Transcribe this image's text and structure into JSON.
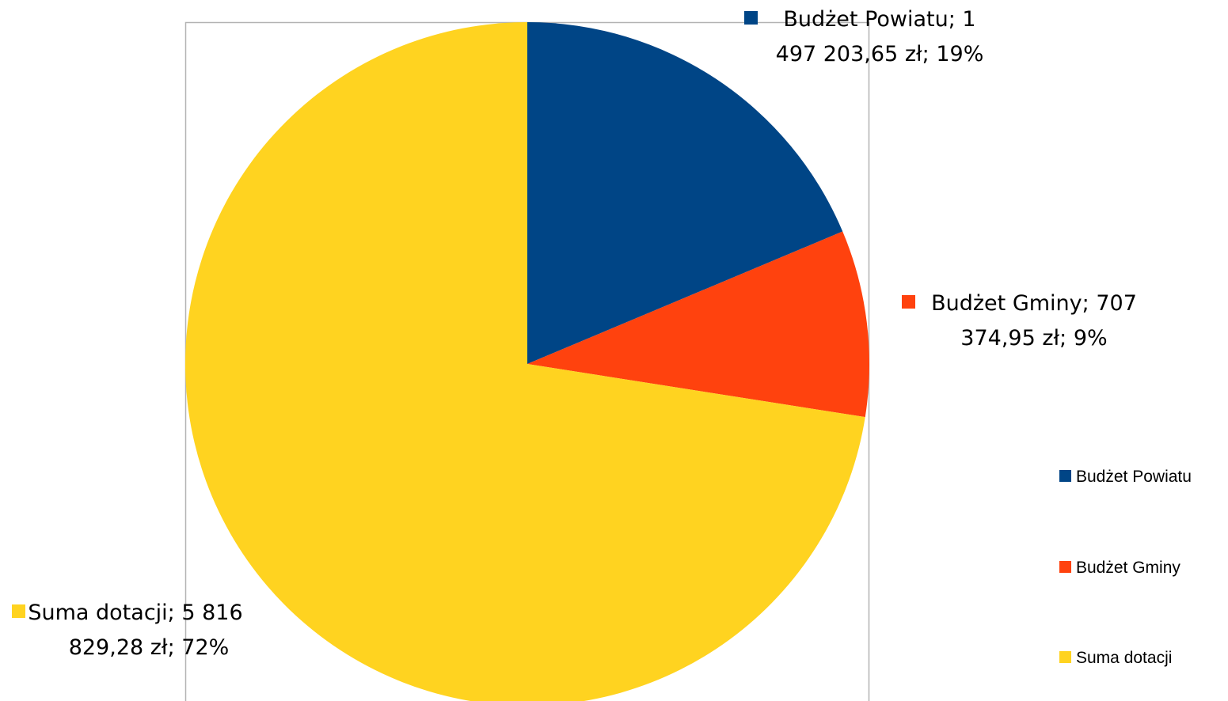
{
  "chart_data": {
    "type": "pie",
    "series": [
      {
        "name": "Budżet Powiatu",
        "value": 1497203.65,
        "color": "#004586",
        "label_line1": "Budżet Powiatu; 1",
        "label_line2": "497 203,65 zł; 19%"
      },
      {
        "name": "Budżet Gminy",
        "value": 707374.95,
        "color": "#ff420e",
        "label_line1": "Budżet Gminy; 707",
        "label_line2": "374,95 zł; 9%"
      },
      {
        "name": "Suma dotacji",
        "value": 5816829.28,
        "color": "#ffd320",
        "label_line1": "Suma dotacji; 5 816",
        "label_line2": "829,28 zł; 72%"
      }
    ],
    "legend_position": "right"
  }
}
